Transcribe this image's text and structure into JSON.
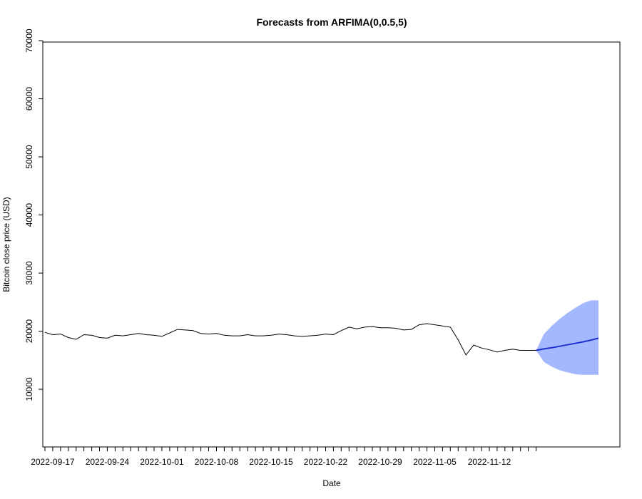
{
  "chart_data": {
    "type": "line",
    "title": "Forecasts from ARFIMA(0,0.5,5)",
    "xlabel": "Date",
    "ylabel": "Bitcoin close price (USD)",
    "ylim": [
      0,
      70000
    ],
    "yticks": [
      10000,
      20000,
      30000,
      40000,
      50000,
      60000,
      70000
    ],
    "xlim": [
      "2022-09-17",
      "2022-11-26"
    ],
    "xticks": [
      "2022-09-17",
      "2022-09-24",
      "2022-10-01",
      "2022-10-08",
      "2022-10-15",
      "2022-10-22",
      "2022-10-29",
      "2022-11-05",
      "2022-11-12"
    ],
    "grid": false,
    "series": [
      {
        "role": "observed",
        "color": "#000000",
        "dates": [
          "2022-09-16",
          "2022-09-17",
          "2022-09-18",
          "2022-09-19",
          "2022-09-20",
          "2022-09-21",
          "2022-09-22",
          "2022-09-23",
          "2022-09-24",
          "2022-09-25",
          "2022-09-26",
          "2022-09-27",
          "2022-09-28",
          "2022-09-29",
          "2022-09-30",
          "2022-10-01",
          "2022-10-02",
          "2022-10-03",
          "2022-10-04",
          "2022-10-05",
          "2022-10-06",
          "2022-10-07",
          "2022-10-08",
          "2022-10-09",
          "2022-10-10",
          "2022-10-11",
          "2022-10-12",
          "2022-10-13",
          "2022-10-14",
          "2022-10-15",
          "2022-10-16",
          "2022-10-17",
          "2022-10-18",
          "2022-10-19",
          "2022-10-20",
          "2022-10-21",
          "2022-10-22",
          "2022-10-23",
          "2022-10-24",
          "2022-10-25",
          "2022-10-26",
          "2022-10-27",
          "2022-10-28",
          "2022-10-29",
          "2022-10-30",
          "2022-10-31",
          "2022-11-01",
          "2022-11-02",
          "2022-11-03",
          "2022-11-04",
          "2022-11-05",
          "2022-11-06",
          "2022-11-07",
          "2022-11-08",
          "2022-11-09",
          "2022-11-10",
          "2022-11-11",
          "2022-11-12",
          "2022-11-13",
          "2022-11-14",
          "2022-11-15",
          "2022-11-16",
          "2022-11-17",
          "2022-11-18"
        ],
        "values": [
          19800,
          19400,
          19500,
          18900,
          18600,
          19400,
          19300,
          18900,
          18800,
          19300,
          19200,
          19400,
          19600,
          19400,
          19300,
          19100,
          19700,
          20300,
          20200,
          20100,
          19600,
          19500,
          19600,
          19300,
          19200,
          19200,
          19400,
          19200,
          19200,
          19300,
          19500,
          19400,
          19200,
          19100,
          19200,
          19300,
          19500,
          19400,
          20100,
          20700,
          20400,
          20700,
          20800,
          20600,
          20600,
          20500,
          20200,
          20300,
          21100,
          21300,
          21100,
          20900,
          20700,
          18500,
          15900,
          17600,
          17100,
          16800,
          16400,
          16700,
          16900,
          16700,
          16700,
          16700
        ]
      },
      {
        "role": "forecast-mean",
        "color": "#1f2fd0",
        "dates": [
          "2022-11-18",
          "2022-11-19",
          "2022-11-20",
          "2022-11-21",
          "2022-11-22",
          "2022-11-23",
          "2022-11-24",
          "2022-11-25",
          "2022-11-26"
        ],
        "values": [
          16700,
          16950,
          17150,
          17400,
          17650,
          17900,
          18150,
          18450,
          18800
        ]
      },
      {
        "role": "prediction-interval",
        "color": "#a4b8ff",
        "dates": [
          "2022-11-18",
          "2022-11-19",
          "2022-11-20",
          "2022-11-21",
          "2022-11-22",
          "2022-11-23",
          "2022-11-24",
          "2022-11-25",
          "2022-11-26"
        ],
        "lower": [
          16700,
          14700,
          13900,
          13300,
          12900,
          12600,
          12500,
          12500,
          12500
        ],
        "upper": [
          16700,
          19500,
          20900,
          22100,
          23100,
          24000,
          24800,
          25300,
          25300
        ]
      }
    ]
  }
}
